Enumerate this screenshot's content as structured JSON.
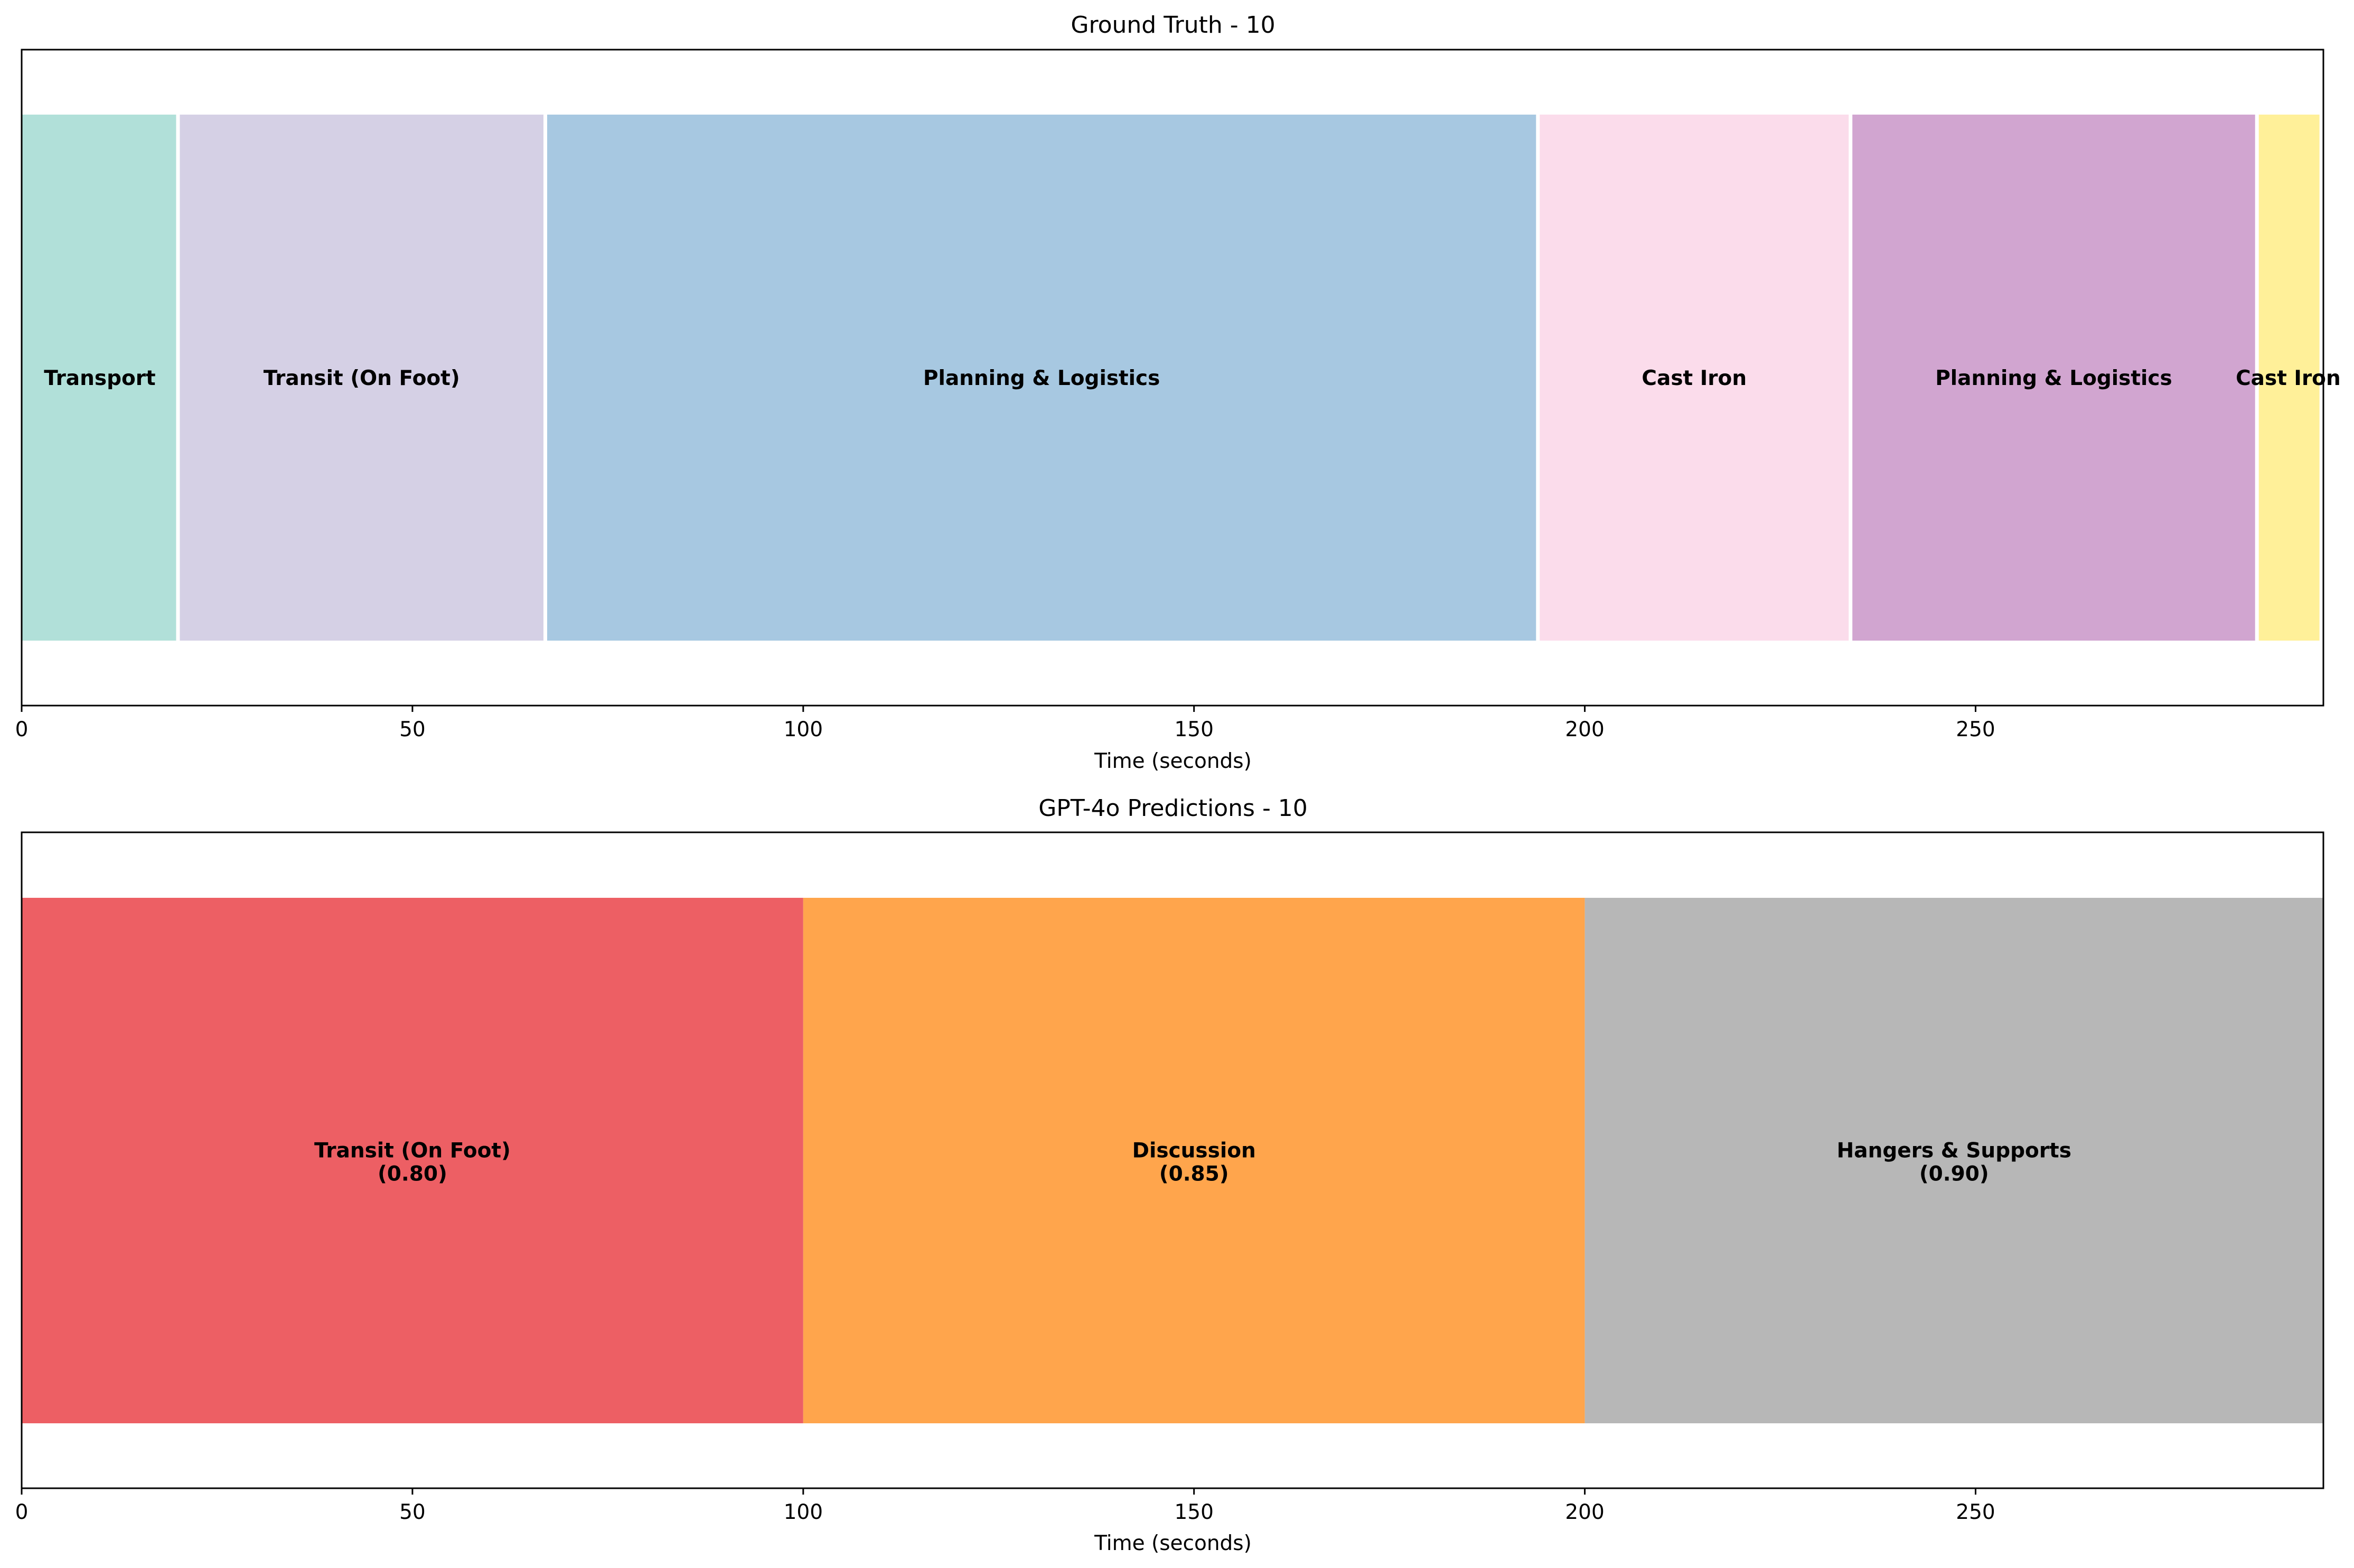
{
  "chart_data": [
    {
      "type": "timeline",
      "title": "Ground Truth - 10",
      "xlabel": "Time (seconds)",
      "xlim": [
        0,
        294.5
      ],
      "xticks": [
        0,
        50,
        100,
        150,
        200,
        250
      ],
      "bar_gap": true,
      "segments": [
        {
          "label": "Transport",
          "start": 0,
          "end": 20,
          "color": "#b1e0d9"
        },
        {
          "label": "Transit (On Foot)",
          "start": 20,
          "end": 67,
          "color": "#d5d0e5"
        },
        {
          "label": "Planning & Logistics",
          "start": 67,
          "end": 194,
          "color": "#a7c8e1"
        },
        {
          "label": "Cast Iron",
          "start": 194,
          "end": 234,
          "color": "#fbdceb"
        },
        {
          "label": "Planning & Logistics",
          "start": 234,
          "end": 286,
          "color": "#d1a5d0"
        },
        {
          "label": "Cast Iron",
          "start": 286,
          "end": 294,
          "color": "#fff099"
        }
      ]
    },
    {
      "type": "timeline",
      "title": "GPT-4o Predictions - 10",
      "xlabel": "Time (seconds)",
      "xlim": [
        0,
        294.5
      ],
      "xticks": [
        0,
        50,
        100,
        150,
        200,
        250
      ],
      "bar_gap": false,
      "segments": [
        {
          "label": "Transit (On Foot)",
          "score": "(0.80)",
          "start": 0,
          "end": 100,
          "color": "#ed5f64"
        },
        {
          "label": "Discussion",
          "score": "(0.85)",
          "start": 100,
          "end": 200,
          "color": "#ffa54c"
        },
        {
          "label": "Hangers & Supports",
          "score": "(0.90)",
          "start": 200,
          "end": 294.5,
          "color": "#b7b7b7"
        }
      ]
    }
  ]
}
